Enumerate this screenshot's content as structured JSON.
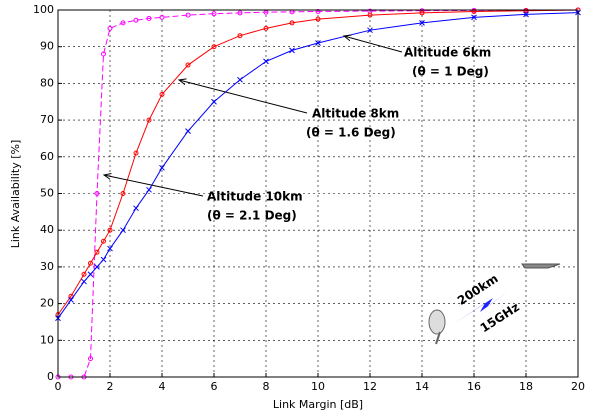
{
  "chart_data": {
    "type": "line",
    "xlabel": "Link Margin [dB]",
    "ylabel": "Link Availability [%]",
    "x": [
      0,
      0.5,
      1,
      1.25,
      1.5,
      1.75,
      2,
      2.5,
      3,
      3.5,
      4,
      5,
      6,
      7,
      8,
      9,
      10,
      12,
      14,
      16,
      18,
      20
    ],
    "series": [
      {
        "name": "Altitude 10km",
        "color": "#ff00ff",
        "marker": "o",
        "dashed": true,
        "values": [
          0,
          0,
          0,
          5,
          50,
          88,
          95,
          96.5,
          97.2,
          97.7,
          98,
          98.6,
          99,
          99.2,
          99.4,
          99.5,
          99.6,
          99.7,
          99.8,
          99.9,
          99.9,
          100
        ]
      },
      {
        "name": "Altitude 8km",
        "color": "#ff0000",
        "marker": "o",
        "dashed": false,
        "values": [
          17,
          22,
          28,
          31,
          34,
          37,
          40,
          50,
          61,
          70,
          77,
          85,
          90,
          93,
          95,
          96.5,
          97.5,
          98.6,
          99.2,
          99.6,
          99.8,
          100
        ]
      },
      {
        "name": "Altitude 6km",
        "color": "#0000ff",
        "marker": "x",
        "dashed": false,
        "values": [
          16,
          21,
          26,
          28,
          30,
          32,
          35,
          40,
          46,
          51,
          57,
          67,
          75,
          81,
          86,
          89,
          91,
          94.5,
          96.5,
          98,
          98.8,
          99.3
        ]
      }
    ],
    "annotations": [
      {
        "series": 2,
        "lines": [
          "Altitude 6km",
          "(θ  = 1 Deg)"
        ]
      },
      {
        "series": 1,
        "lines": [
          "Altitude 8km",
          "(θ  = 1.6 Deg)"
        ]
      },
      {
        "series": 0,
        "lines": [
          "Altitude 10km",
          "(θ  = 2.1 Deg)"
        ]
      }
    ],
    "inset_labels": [
      "200km",
      "15GHz"
    ],
    "xlim": [
      0,
      20
    ],
    "xticks": [
      0,
      2,
      4,
      6,
      8,
      10,
      12,
      14,
      16,
      18,
      20
    ],
    "ylim": [
      0,
      100
    ],
    "yticks": [
      0,
      10,
      20,
      30,
      40,
      50,
      60,
      70,
      80,
      90,
      100
    ],
    "grid": true
  }
}
